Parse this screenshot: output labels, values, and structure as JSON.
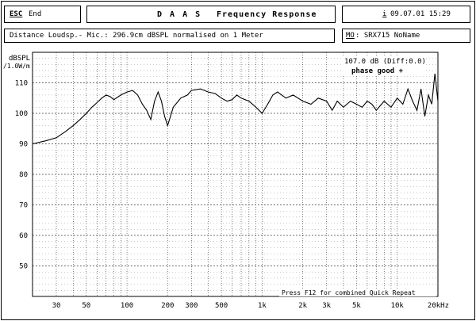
{
  "header": {
    "esc_key": "ESC",
    "esc_label": "End",
    "title_prefix": "D A A S",
    "title": "Frequency Response",
    "info_icon": "i",
    "datetime": "09.07.01 15:29"
  },
  "info_bar": {
    "measurement": "Distance Loudsp.- Mic.: 296.9cm dBSPL normalised on 1 Meter",
    "mo_key": "MO",
    "mo_value": ": SRX715 NoName"
  },
  "plot_overlay": {
    "level_text": "107.0 dB (Diff:0.0)",
    "phase_text": "phase good +",
    "footer_text": "Press F12 for combined Quick Repeat"
  },
  "chart_data": {
    "type": "line",
    "ylabel": "dBSPL",
    "ylabel_unit": "/1.0W/m",
    "xlabel": "",
    "x_scale": "log",
    "xlim": [
      20,
      20000
    ],
    "ylim": [
      40,
      120
    ],
    "grid": true,
    "yticks": [
      50,
      60,
      70,
      80,
      90,
      100,
      110
    ],
    "ytick_labels": [
      "50",
      "60",
      "70",
      "80",
      "90",
      "100",
      "110"
    ],
    "xticks": [
      30,
      50,
      100,
      200,
      300,
      500,
      1000,
      2000,
      3000,
      5000,
      10000,
      20000
    ],
    "xtick_labels": [
      "30",
      "50",
      "100",
      "200",
      "300",
      "500",
      "1k",
      "2k",
      "3k",
      "5k",
      "10k",
      "20kHz"
    ],
    "series": [
      {
        "x": [
          20,
          25,
          30,
          35,
          40,
          45,
          50,
          55,
          60,
          65,
          70,
          75,
          80,
          90,
          100,
          110,
          120,
          130,
          140,
          150,
          160,
          170,
          180,
          190,
          200,
          220,
          250,
          280,
          300,
          350,
          400,
          450,
          500,
          550,
          600,
          650,
          700,
          800,
          900,
          1000,
          1100,
          1200,
          1300,
          1500,
          1700,
          2000,
          2300,
          2600,
          3000,
          3300,
          3600,
          4000,
          4500,
          5000,
          5500,
          6000,
          6500,
          7000,
          8000,
          9000,
          10000,
          11000,
          12000,
          13000,
          14000,
          15000,
          16000,
          17000,
          18000,
          19000,
          20000
        ],
        "values": [
          90,
          91,
          92,
          94,
          96,
          98,
          100,
          102,
          103.5,
          105,
          106,
          105.5,
          104.5,
          106,
          107,
          107.5,
          106,
          103,
          101,
          98,
          104,
          107,
          104,
          99,
          96,
          102,
          105,
          106,
          107.5,
          108,
          107,
          106.5,
          105,
          104,
          104.5,
          106,
          105,
          104,
          102,
          100,
          103,
          106,
          107,
          105,
          106,
          104,
          103,
          105,
          104,
          101,
          104,
          102,
          104,
          103,
          102,
          104,
          103,
          101,
          104,
          102,
          105,
          103,
          108,
          104,
          101,
          108,
          99,
          106,
          103,
          113,
          104
        ]
      }
    ]
  }
}
